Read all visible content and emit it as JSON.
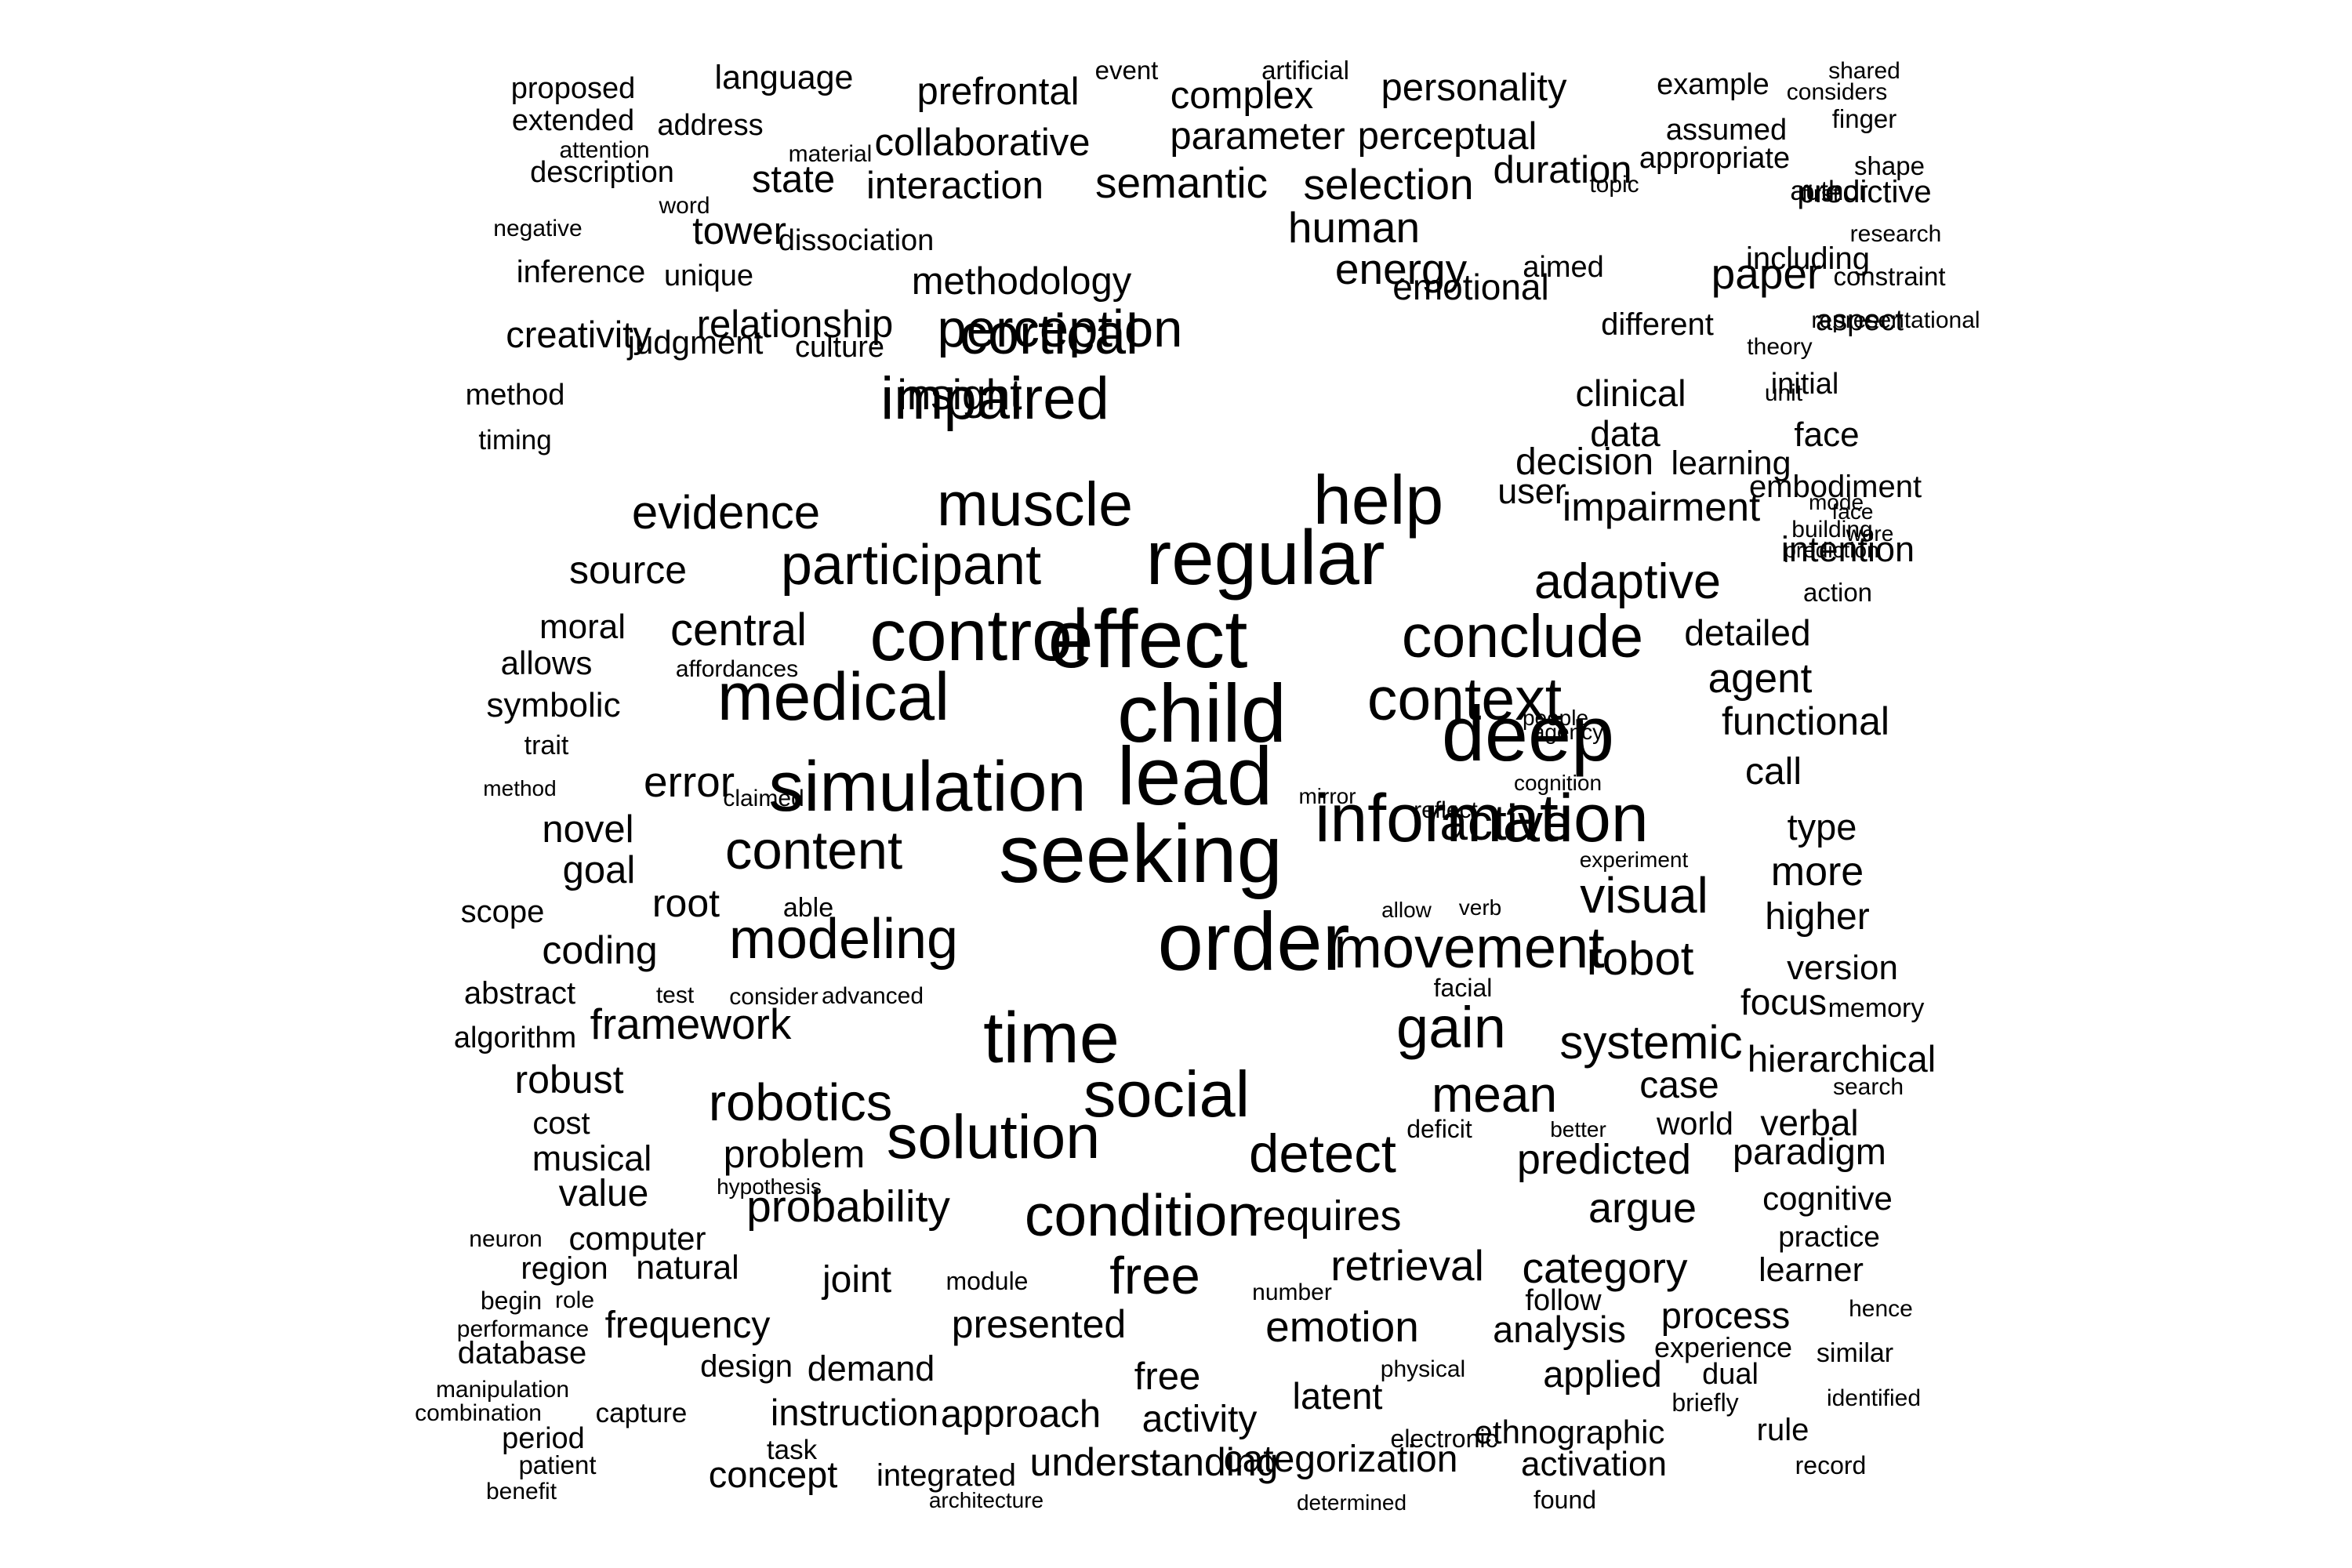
{
  "word_cloud": {
    "text_color": "#000000",
    "background_color": "#ffffff",
    "words": [
      "proposed",
      "language",
      "event",
      "artificial",
      "shared",
      "considers",
      "extended",
      "address",
      "prefrontal",
      "complex",
      "personality",
      "example",
      "finger",
      "attention",
      "material",
      "assumed",
      "description",
      "collaborative",
      "parameter",
      "perceptual",
      "appropriate",
      "shape",
      "word",
      "state",
      "topic",
      "author",
      "negative",
      "interaction",
      "semantic",
      "selection",
      "duration",
      "research",
      "predictive",
      "first",
      "tower",
      "human",
      "dissociation",
      "including",
      "inference",
      "unique",
      "constraint",
      "methodology",
      "energy",
      "aimed",
      "representational",
      "relationship",
      "paper",
      "judgment",
      "creativity",
      "culture",
      "cortical",
      "emotional",
      "aspect",
      "theory",
      "initial",
      "insight",
      "perception",
      "different",
      "method",
      "clinical",
      "unit",
      "impaired",
      "data",
      "face",
      "embodiment",
      "mode",
      "timing",
      "decision",
      "learning",
      "building",
      "prediction",
      "evidence",
      "muscle",
      "help",
      "face",
      "were",
      "user",
      "impairment",
      "source",
      "participant",
      "regular",
      "intention",
      "adaptive",
      "action",
      "moral",
      "central",
      "control",
      "effect",
      "conclude",
      "detailed",
      "allows",
      "affordances",
      "agent",
      "symbolic",
      "medical",
      "child",
      "context",
      "people",
      "functional",
      "trait",
      "agency",
      "deep",
      "method",
      "error",
      "lead",
      "cognition",
      "call",
      "mirror",
      "claimed",
      "simulation",
      "reflect",
      "novel",
      "active",
      "type",
      "information",
      "goal",
      "content",
      "experiment",
      "seeking",
      "more",
      "scope",
      "root",
      "able",
      "allow",
      "verb",
      "visual",
      "higher",
      "modeling",
      "order",
      "movement",
      "coding",
      "robot",
      "version",
      "abstract",
      "test",
      "consider",
      "advanced",
      "facial",
      "focus",
      "memory",
      "gain",
      "algorithm",
      "framework",
      "time",
      "systemic",
      "robust",
      "hierarchical",
      "social",
      "mean",
      "case",
      "search",
      "robotics",
      "cost",
      "deficit",
      "better",
      "world",
      "verbal",
      "musical",
      "problem",
      "solution",
      "predicted",
      "paradigm",
      "detect",
      "hypothesis",
      "value",
      "cognitive",
      "probability",
      "condition",
      "requires",
      "argue",
      "neuron",
      "computer",
      "practice",
      "region",
      "retrieval",
      "category",
      "learner",
      "natural",
      "joint",
      "module",
      "free",
      "begin",
      "role",
      "number",
      "follow",
      "hence",
      "performance",
      "frequency",
      "presented",
      "emotion",
      "analysis",
      "process",
      "database",
      "experience",
      "design",
      "demand",
      "physical",
      "applied",
      "dual",
      "similar",
      "manipulation",
      "free",
      "combination",
      "capture",
      "latent",
      "briefly",
      "identified",
      "instruction",
      "period",
      "approach",
      "activity",
      "ethnographic",
      "rule",
      "electronic",
      "task",
      "patient",
      "categorization",
      "activation",
      "record",
      "integrated",
      "understanding",
      "concept",
      "benefit",
      "architecture",
      "determined",
      "found"
    ]
  }
}
